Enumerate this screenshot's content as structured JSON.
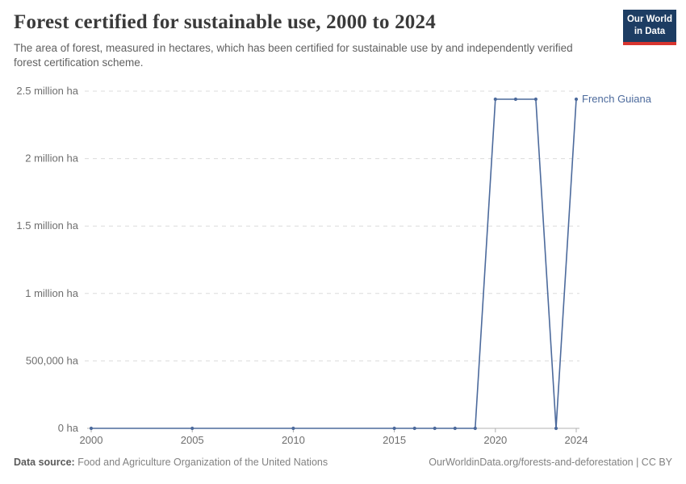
{
  "header": {
    "title": "Forest certified for sustainable use, 2000 to 2024",
    "subtitle": "The area of forest, measured in hectares, which has been certified for sustainable use by and independently verified forest certification scheme.",
    "logo": {
      "line1": "Our World",
      "line2": "in Data"
    }
  },
  "chart_data": {
    "type": "line",
    "title": "Forest certified for sustainable use, 2000 to 2024",
    "series": [
      {
        "name": "French Guiana",
        "color": "#4C6A9C",
        "points": [
          [
            2000,
            0
          ],
          [
            2005,
            0
          ],
          [
            2010,
            0
          ],
          [
            2015,
            0
          ],
          [
            2016,
            0
          ],
          [
            2017,
            0
          ],
          [
            2018,
            0
          ],
          [
            2019,
            0
          ],
          [
            2020,
            2440000
          ],
          [
            2021,
            2440000
          ],
          [
            2022,
            2440000
          ],
          [
            2023,
            0
          ],
          [
            2024,
            2440000
          ]
        ]
      }
    ],
    "xlabel": "",
    "ylabel": "",
    "xlim": [
      2000,
      2024
    ],
    "ylim": [
      0,
      2500000
    ],
    "x_ticks": [
      2000,
      2005,
      2010,
      2015,
      2020,
      2024
    ],
    "y_ticks": [
      {
        "value": 0,
        "label": "0 ha"
      },
      {
        "value": 500000,
        "label": "500,000 ha"
      },
      {
        "value": 1000000,
        "label": "1 million ha"
      },
      {
        "value": 1500000,
        "label": "1.5 million ha"
      },
      {
        "value": 2000000,
        "label": "2 million ha"
      },
      {
        "value": 2500000,
        "label": "2.5 million ha"
      }
    ],
    "grid": "horizontal-dashed",
    "legend_position": "end-of-line-label"
  },
  "footer": {
    "source_label": "Data source:",
    "source_text": " Food and Agriculture Organization of the United Nations",
    "right_text": "OurWorldinData.org/forests-and-deforestation | CC BY"
  },
  "colors": {
    "line": "#4C6A9C",
    "grid": "#dcdcdc",
    "axis": "#b0b0b0",
    "tick_label": "#6e6e6e",
    "title": "#3a3a3a",
    "subtitle": "#616161",
    "logo_bg": "#1d3d63",
    "logo_red": "#d8352f"
  }
}
